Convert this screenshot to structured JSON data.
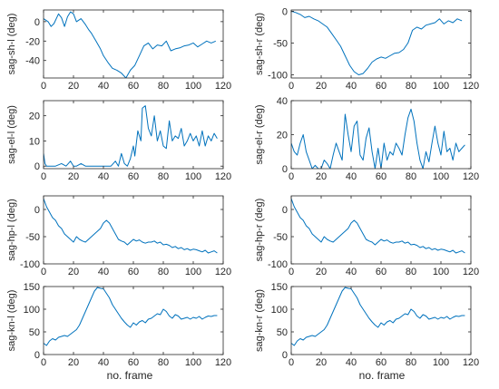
{
  "figure": {
    "xlabel": "no. frame"
  },
  "colors": {
    "line": "#0072bd",
    "axes": "#262626",
    "background": "#ffffff"
  },
  "chart_data": [
    {
      "type": "line",
      "title": "",
      "xlabel": "",
      "ylabel": "sag-sh-l (deg)",
      "xlim": [
        0,
        120
      ],
      "ylim": [
        -58,
        12
      ],
      "xticks": [
        0,
        20,
        40,
        60,
        80,
        100,
        120
      ],
      "yticks": [
        -40,
        -20,
        0
      ],
      "xticklabels": [
        "0",
        "20",
        "40",
        "60",
        "80",
        "100",
        "120"
      ],
      "yticklabels": [
        "-40",
        "-20",
        "0"
      ],
      "x": [
        0,
        3,
        5,
        7,
        10,
        12,
        14,
        16,
        18,
        20,
        22,
        25,
        28,
        30,
        32,
        35,
        38,
        40,
        43,
        46,
        49,
        52,
        55,
        58,
        61,
        64,
        67,
        70,
        73,
        76,
        79,
        82,
        85,
        88,
        91,
        94,
        97,
        100,
        103,
        106,
        109,
        112,
        115
      ],
      "y": [
        3,
        0,
        -5,
        -2,
        8,
        4,
        -5,
        5,
        10,
        8,
        0,
        3,
        -3,
        -8,
        -12,
        -20,
        -28,
        -35,
        -42,
        -48,
        -50,
        -53,
        -58,
        -50,
        -45,
        -35,
        -25,
        -22,
        -28,
        -24,
        -25,
        -20,
        -30,
        -28,
        -27,
        -25,
        -24,
        -22,
        -26,
        -23,
        -20,
        -22,
        -20
      ],
      "grid": false,
      "legend": null
    },
    {
      "type": "line",
      "title": "",
      "xlabel": "",
      "ylabel": "sag-sh-r (deg)",
      "xlim": [
        0,
        120
      ],
      "ylim": [
        -105,
        2
      ],
      "xticks": [
        0,
        20,
        40,
        60,
        80,
        100,
        120
      ],
      "yticks": [
        -100,
        -50,
        0
      ],
      "xticklabels": [
        "0",
        "20",
        "40",
        "60",
        "80",
        "100",
        "120"
      ],
      "yticklabels": [
        "-100",
        "-50",
        "0"
      ],
      "x": [
        0,
        3,
        6,
        9,
        12,
        15,
        18,
        21,
        24,
        27,
        30,
        33,
        36,
        39,
        42,
        45,
        48,
        51,
        54,
        57,
        60,
        63,
        66,
        69,
        72,
        75,
        78,
        81,
        84,
        87,
        90,
        93,
        96,
        99,
        102,
        105,
        108,
        111,
        114
      ],
      "y": [
        0,
        -2,
        -5,
        -10,
        -8,
        -12,
        -15,
        -20,
        -25,
        -35,
        -45,
        -55,
        -70,
        -85,
        -95,
        -100,
        -98,
        -90,
        -80,
        -75,
        -72,
        -74,
        -70,
        -66,
        -65,
        -60,
        -50,
        -30,
        -25,
        -28,
        -22,
        -20,
        -18,
        -12,
        -20,
        -15,
        -18,
        -12,
        -15
      ],
      "grid": false,
      "legend": null
    },
    {
      "type": "line",
      "title": "",
      "xlabel": "",
      "ylabel": "sag-el-l (deg)",
      "xlim": [
        0,
        120
      ],
      "ylim": [
        -1,
        26
      ],
      "xticks": [
        0,
        20,
        40,
        60,
        80,
        100,
        120
      ],
      "yticks": [
        0,
        10,
        20
      ],
      "xticklabels": [
        "0",
        "20",
        "40",
        "60",
        "80",
        "100",
        "120"
      ],
      "yticklabels": [
        "0",
        "10",
        "20"
      ],
      "x": [
        0,
        1,
        2,
        4,
        8,
        12,
        15,
        18,
        20,
        22,
        25,
        28,
        32,
        35,
        40,
        45,
        48,
        50,
        52,
        54,
        56,
        58,
        60,
        61,
        63,
        65,
        66,
        68,
        70,
        72,
        74,
        76,
        78,
        80,
        82,
        84,
        86,
        88,
        90,
        92,
        94,
        96,
        98,
        100,
        102,
        104,
        106,
        108,
        110,
        112,
        114,
        116
      ],
      "y": [
        5,
        1,
        0,
        0,
        0,
        1,
        0,
        2,
        0,
        0,
        1,
        0,
        0,
        0,
        0,
        0,
        2,
        0,
        5,
        1,
        0,
        3,
        8,
        4,
        14,
        10,
        23,
        24,
        15,
        12,
        20,
        10,
        14,
        8,
        7,
        18,
        10,
        12,
        11,
        15,
        8,
        10,
        13,
        10,
        12,
        8,
        14,
        8,
        12,
        10,
        13,
        11
      ],
      "grid": false,
      "legend": null
    },
    {
      "type": "line",
      "title": "",
      "xlabel": "",
      "ylabel": "sag-el-r (deg)",
      "xlim": [
        0,
        120
      ],
      "ylim": [
        0,
        40
      ],
      "xticks": [
        0,
        20,
        40,
        60,
        80,
        100,
        120
      ],
      "yticks": [
        0,
        20,
        40
      ],
      "xticklabels": [
        "0",
        "20",
        "40",
        "60",
        "80",
        "100",
        "120"
      ],
      "yticklabels": [
        "0",
        "20",
        "40"
      ],
      "x": [
        0,
        2,
        4,
        6,
        8,
        10,
        12,
        14,
        16,
        18,
        20,
        22,
        24,
        26,
        28,
        30,
        32,
        34,
        36,
        38,
        40,
        42,
        44,
        46,
        48,
        50,
        52,
        54,
        56,
        58,
        60,
        62,
        64,
        66,
        68,
        70,
        72,
        74,
        76,
        78,
        80,
        82,
        84,
        86,
        88,
        90,
        92,
        94,
        96,
        98,
        100,
        102,
        104,
        106,
        108,
        110,
        112,
        114,
        116
      ],
      "y": [
        15,
        10,
        8,
        15,
        20,
        10,
        5,
        0,
        2,
        0,
        0,
        5,
        3,
        0,
        8,
        15,
        10,
        5,
        32,
        20,
        10,
        25,
        28,
        8,
        5,
        18,
        24,
        10,
        0,
        12,
        0,
        15,
        5,
        10,
        8,
        15,
        12,
        8,
        20,
        30,
        35,
        28,
        15,
        5,
        0,
        10,
        4,
        15,
        25,
        15,
        8,
        22,
        10,
        12,
        5,
        15,
        10,
        12,
        14
      ],
      "grid": false,
      "legend": null
    },
    {
      "type": "line",
      "title": "",
      "xlabel": "",
      "ylabel": "sag-hp-l (deg)",
      "xlim": [
        0,
        120
      ],
      "ylim": [
        -100,
        25
      ],
      "xticks": [
        0,
        20,
        40,
        60,
        80,
        100,
        120
      ],
      "yticks": [
        -100,
        -50,
        0
      ],
      "xticklabels": [
        "0",
        "20",
        "40",
        "60",
        "80",
        "100",
        "120"
      ],
      "yticklabels": [
        "-100",
        "-50",
        "0"
      ],
      "x": [
        0,
        2,
        4,
        6,
        8,
        10,
        12,
        14,
        16,
        18,
        20,
        22,
        24,
        26,
        28,
        30,
        32,
        34,
        36,
        38,
        40,
        42,
        44,
        46,
        48,
        50,
        52,
        54,
        56,
        58,
        60,
        62,
        64,
        66,
        68,
        70,
        72,
        74,
        76,
        78,
        80,
        82,
        84,
        86,
        88,
        90,
        92,
        94,
        96,
        98,
        100,
        102,
        104,
        106,
        108,
        110,
        112,
        114,
        116
      ],
      "y": [
        20,
        5,
        -5,
        -15,
        -20,
        -30,
        -35,
        -45,
        -50,
        -55,
        -60,
        -50,
        -55,
        -58,
        -60,
        -55,
        -50,
        -45,
        -40,
        -35,
        -25,
        -20,
        -25,
        -35,
        -45,
        -55,
        -58,
        -60,
        -65,
        -60,
        -55,
        -58,
        -56,
        -60,
        -62,
        -60,
        -60,
        -58,
        -62,
        -60,
        -65,
        -64,
        -66,
        -70,
        -68,
        -72,
        -70,
        -74,
        -72,
        -75,
        -73,
        -74,
        -76,
        -78,
        -75,
        -80,
        -78,
        -76,
        -80
      ],
      "grid": false,
      "legend": null
    },
    {
      "type": "line",
      "title": "",
      "xlabel": "",
      "ylabel": "sag-hp-r (deg)",
      "xlim": [
        0,
        120
      ],
      "ylim": [
        -100,
        25
      ],
      "xticks": [
        0,
        20,
        40,
        60,
        80,
        100,
        120
      ],
      "yticks": [
        -100,
        -50,
        0
      ],
      "xticklabels": [
        "0",
        "20",
        "40",
        "60",
        "80",
        "100",
        "120"
      ],
      "yticklabels": [
        "-100",
        "-50",
        "0"
      ],
      "x": [
        0,
        2,
        4,
        6,
        8,
        10,
        12,
        14,
        16,
        18,
        20,
        22,
        24,
        26,
        28,
        30,
        32,
        34,
        36,
        38,
        40,
        42,
        44,
        46,
        48,
        50,
        52,
        54,
        56,
        58,
        60,
        62,
        64,
        66,
        68,
        70,
        72,
        74,
        76,
        78,
        80,
        82,
        84,
        86,
        88,
        90,
        92,
        94,
        96,
        98,
        100,
        102,
        104,
        106,
        108,
        110,
        112,
        114,
        116
      ],
      "y": [
        20,
        5,
        -5,
        -15,
        -20,
        -30,
        -35,
        -45,
        -50,
        -55,
        -60,
        -50,
        -55,
        -58,
        -60,
        -55,
        -50,
        -45,
        -40,
        -35,
        -25,
        -20,
        -25,
        -35,
        -45,
        -55,
        -58,
        -60,
        -65,
        -60,
        -55,
        -58,
        -56,
        -60,
        -62,
        -60,
        -60,
        -58,
        -62,
        -60,
        -65,
        -64,
        -66,
        -70,
        -68,
        -72,
        -70,
        -74,
        -72,
        -75,
        -73,
        -74,
        -76,
        -78,
        -75,
        -80,
        -78,
        -76,
        -80
      ],
      "grid": false,
      "legend": null
    },
    {
      "type": "line",
      "title": "",
      "xlabel": "",
      "ylabel": "sag-kn-l (deg)",
      "xlim": [
        0,
        120
      ],
      "ylim": [
        0,
        150
      ],
      "xticks": [
        0,
        20,
        40,
        60,
        80,
        100,
        120
      ],
      "yticks": [
        0,
        50,
        100,
        150
      ],
      "xticklabels": [
        "0",
        "20",
        "40",
        "60",
        "80",
        "100",
        "120"
      ],
      "yticklabels": [
        "0",
        "50",
        "100",
        "150"
      ],
      "x": [
        0,
        2,
        4,
        6,
        8,
        10,
        12,
        14,
        16,
        18,
        20,
        22,
        24,
        26,
        28,
        30,
        32,
        34,
        36,
        38,
        40,
        42,
        44,
        46,
        48,
        50,
        52,
        54,
        56,
        58,
        60,
        62,
        64,
        66,
        68,
        70,
        72,
        74,
        76,
        78,
        80,
        82,
        84,
        86,
        88,
        90,
        92,
        94,
        96,
        98,
        100,
        102,
        104,
        106,
        108,
        110,
        112,
        114,
        116
      ],
      "y": [
        25,
        20,
        30,
        35,
        32,
        38,
        40,
        42,
        40,
        45,
        50,
        55,
        65,
        80,
        95,
        110,
        125,
        140,
        148,
        146,
        145,
        135,
        125,
        110,
        100,
        90,
        80,
        72,
        65,
        60,
        70,
        65,
        72,
        75,
        70,
        78,
        80,
        85,
        90,
        88,
        100,
        95,
        85,
        80,
        88,
        85,
        78,
        80,
        82,
        78,
        82,
        80,
        84,
        78,
        82,
        85,
        84,
        86,
        86
      ],
      "grid": false,
      "legend": null
    },
    {
      "type": "line",
      "title": "",
      "xlabel": "",
      "ylabel": "sag-kn-r (deg)",
      "xlim": [
        0,
        120
      ],
      "ylim": [
        0,
        150
      ],
      "xticks": [
        0,
        20,
        40,
        60,
        80,
        100,
        120
      ],
      "yticks": [
        0,
        50,
        100,
        150
      ],
      "xticklabels": [
        "0",
        "20",
        "40",
        "60",
        "80",
        "100",
        "120"
      ],
      "yticklabels": [
        "0",
        "50",
        "100",
        "150"
      ],
      "x": [
        0,
        2,
        4,
        6,
        8,
        10,
        12,
        14,
        16,
        18,
        20,
        22,
        24,
        26,
        28,
        30,
        32,
        34,
        36,
        38,
        40,
        42,
        44,
        46,
        48,
        50,
        52,
        54,
        56,
        58,
        60,
        62,
        64,
        66,
        68,
        70,
        72,
        74,
        76,
        78,
        80,
        82,
        84,
        86,
        88,
        90,
        92,
        94,
        96,
        98,
        100,
        102,
        104,
        106,
        108,
        110,
        112,
        114,
        116
      ],
      "y": [
        25,
        20,
        30,
        35,
        32,
        38,
        40,
        42,
        40,
        45,
        50,
        55,
        65,
        80,
        95,
        110,
        125,
        140,
        148,
        146,
        145,
        135,
        125,
        110,
        100,
        90,
        80,
        72,
        65,
        60,
        70,
        65,
        72,
        75,
        70,
        78,
        80,
        85,
        90,
        88,
        100,
        95,
        85,
        80,
        88,
        85,
        78,
        80,
        82,
        78,
        82,
        80,
        84,
        78,
        82,
        85,
        84,
        86,
        86
      ],
      "grid": false,
      "legend": null
    }
  ]
}
